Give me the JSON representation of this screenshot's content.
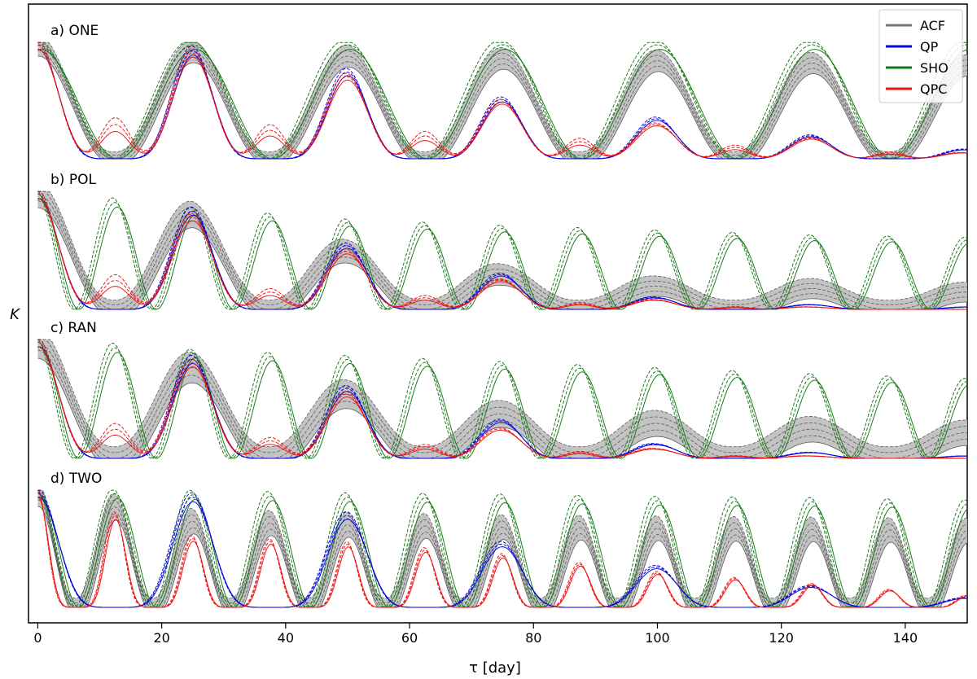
{
  "chart_data": {
    "type": "line",
    "xlabel": "τ [day]",
    "ylabel": "K",
    "xlim": [
      -1.5,
      150
    ],
    "xticks": [
      0,
      20,
      40,
      60,
      80,
      100,
      120,
      140
    ],
    "panels": [
      {
        "label": "a) ONE",
        "series": [
          {
            "name": "ACF",
            "period": 25,
            "x": [
              0,
              25,
              50,
              75,
              100,
              125,
              150
            ],
            "peaks": [
              1.0,
              0.94,
              0.9,
              0.88,
              0.86,
              0.84,
              0.82
            ],
            "band": 0.06
          },
          {
            "name": "QP",
            "period": 25,
            "x": [
              0,
              25,
              50,
              75,
              100,
              125,
              150
            ],
            "peaks": [
              1.0,
              0.95,
              0.76,
              0.52,
              0.35,
              0.2,
              0.08
            ],
            "sub_peaks": [
              0.0,
              0.0,
              0.0,
              0.0,
              0.0,
              0.0
            ]
          },
          {
            "name": "SHO",
            "period": 25,
            "x": [
              0,
              25,
              50,
              75,
              100,
              125,
              150
            ],
            "peaks": [
              1.0,
              1.0,
              1.0,
              1.0,
              1.0,
              1.0,
              1.0
            ]
          },
          {
            "name": "QPC",
            "period": 25,
            "x": [
              0,
              25,
              50,
              75,
              100,
              125,
              150
            ],
            "peaks": [
              1.0,
              0.93,
              0.72,
              0.5,
              0.3,
              0.18,
              0.05
            ],
            "sub_peaks": [
              0.3,
              0.25,
              0.2,
              0.15,
              0.1,
              0.05
            ]
          }
        ]
      },
      {
        "label": "b) POL",
        "series": [
          {
            "name": "ACF",
            "period": 25,
            "peaks": [
              1.0,
              0.82,
              0.5,
              0.3,
              0.2,
              0.18,
              0.15
            ],
            "band": 0.08
          },
          {
            "name": "QP",
            "period": 25,
            "peaks": [
              1.0,
              0.85,
              0.55,
              0.3,
              0.1,
              0.04,
              0.02
            ]
          },
          {
            "name": "SHO",
            "period": 12.5,
            "peaks": [
              1.0,
              0.85,
              0.75,
              0.7,
              0.66,
              0.62,
              0.6
            ]
          },
          {
            "name": "QPC",
            "period": 25,
            "peaks": [
              1.0,
              0.8,
              0.5,
              0.25,
              0.08,
              0.02,
              0.0
            ],
            "sub_peaks": [
              0.25,
              0.15,
              0.1,
              0.05,
              0.02,
              0.0
            ]
          }
        ]
      },
      {
        "label": "c) RAN",
        "series": [
          {
            "name": "ACF",
            "period": 25,
            "peaks": [
              1.0,
              0.78,
              0.55,
              0.38,
              0.3,
              0.25,
              0.22
            ],
            "band": 0.1
          },
          {
            "name": "QP",
            "period": 25,
            "peaks": [
              1.0,
              0.85,
              0.6,
              0.32,
              0.12,
              0.05,
              0.02
            ]
          },
          {
            "name": "SHO",
            "period": 12.5,
            "peaks": [
              1.0,
              0.9,
              0.85,
              0.8,
              0.75,
              0.7,
              0.66
            ]
          },
          {
            "name": "QPC",
            "period": 25,
            "peaks": [
              1.0,
              0.82,
              0.55,
              0.25,
              0.08,
              0.02,
              0.0
            ],
            "sub_peaks": [
              0.25,
              0.15,
              0.1,
              0.05,
              0.02,
              0.0
            ]
          }
        ]
      },
      {
        "label": "d) TWO",
        "series": [
          {
            "name": "ACF",
            "period": 12.5,
            "peaks": [
              1.0,
              0.75,
              0.72,
              0.7,
              0.69,
              0.68,
              0.67
            ],
            "band": 0.08
          },
          {
            "name": "QP",
            "period": 25,
            "peaks": [
              1.0,
              0.96,
              0.8,
              0.55,
              0.35,
              0.18,
              0.08
            ]
          },
          {
            "name": "SHO",
            "period": 12.5,
            "peaks": [
              1.0,
              0.98,
              0.96,
              0.95,
              0.93,
              0.92,
              0.9
            ]
          },
          {
            "name": "QPC",
            "period": 12.5,
            "peaks": [
              1.0,
              0.6,
              0.55,
              0.45,
              0.3,
              0.2,
              0.1
            ]
          }
        ]
      }
    ],
    "legend": {
      "placement": "top-right",
      "entries": [
        {
          "name": "ACF",
          "color": "#777777"
        },
        {
          "name": "QP",
          "color": "#0000dd"
        },
        {
          "name": "SHO",
          "color": "#117711"
        },
        {
          "name": "QPC",
          "color": "#ee1111"
        }
      ]
    }
  }
}
